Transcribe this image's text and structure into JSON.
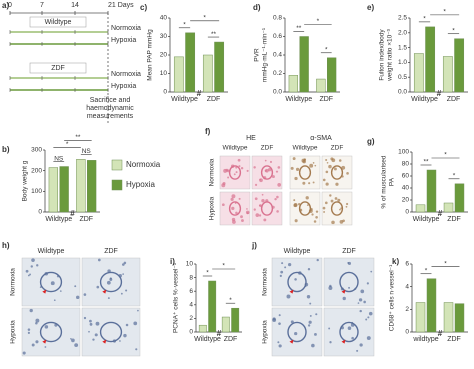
{
  "panel_labels": [
    "a)",
    "b)",
    "c)",
    "d)",
    "e)",
    "f)",
    "g)",
    "h)",
    "i)",
    "j)",
    "k)"
  ],
  "timeline": {
    "days": [
      "0",
      "7",
      "14",
      "21 Days"
    ],
    "groups": [
      {
        "name": "Wildtype",
        "conditions": [
          "Normoxia",
          "Hypoxia"
        ]
      },
      {
        "name": "ZDF",
        "conditions": [
          "Normoxia",
          "Hypoxia"
        ]
      }
    ],
    "endpoint": [
      "Sacrifice and",
      "haemodynamic",
      "measurements"
    ]
  },
  "chart_data": [
    {
      "type": "bar",
      "y_label": [
        "Body weight g"
      ],
      "categories": [
        "Wildtype",
        "ZDF"
      ],
      "axis_break": "#",
      "series": [
        {
          "name": "Normoxia",
          "color": "#d3e4b7",
          "values": [
            215,
            255
          ]
        },
        {
          "name": "Hypoxia",
          "color": "#6a9a3c",
          "values": [
            220,
            250
          ]
        }
      ],
      "ylim": [
        0,
        300
      ],
      "yticks": [
        0,
        100,
        200,
        300
      ],
      "annotations": [
        "NS",
        "*",
        "NS",
        "**"
      ]
    },
    {
      "type": "bar",
      "y_label": [
        "Mean PAP mmHg"
      ],
      "categories": [
        "Wildtype",
        "ZDF"
      ],
      "axis_break": "#",
      "series": [
        {
          "color": "#d3e4b7",
          "values": [
            19,
            20
          ]
        },
        {
          "color": "#6a9a3c",
          "values": [
            32,
            27
          ]
        }
      ],
      "ylim": [
        0,
        40
      ],
      "yticks": [
        0,
        10,
        20,
        30,
        40
      ],
      "annotations": [
        "*",
        "*",
        "**"
      ]
    },
    {
      "type": "bar",
      "y_label": [
        "PVR",
        "mmHg·mL⁻¹·min⁻¹"
      ],
      "categories": [
        "Wildtype",
        "ZDF"
      ],
      "series": [
        {
          "color": "#d3e4b7",
          "values": [
            0.18,
            0.14
          ]
        },
        {
          "color": "#6a9a3c",
          "values": [
            0.6,
            0.37
          ]
        }
      ],
      "ylim": [
        0,
        0.8
      ],
      "yticks": [
        {
          "value": 0,
          "label": "0.0"
        },
        0.2,
        0.4,
        0.6,
        0.8
      ],
      "annotations": [
        "**",
        "*",
        "*"
      ]
    },
    {
      "type": "bar",
      "y_label": [
        "Fulton index/body",
        "weight ratio ×10⁻³"
      ],
      "categories": [
        "Wildtype",
        "ZDF"
      ],
      "axis_break": "#",
      "series": [
        {
          "color": "#d3e4b7",
          "values": [
            1.3,
            1.2
          ]
        },
        {
          "color": "#6a9a3c",
          "values": [
            2.2,
            1.8
          ]
        }
      ],
      "ylim": [
        0,
        2.5
      ],
      "yticks": [
        {
          "value": 0,
          "label": "0.0"
        },
        0.5,
        {
          "value": 1,
          "label": "1.0"
        },
        1.5,
        {
          "value": 2,
          "label": "2.0"
        },
        2.5
      ],
      "annotations": [
        "*",
        "*",
        "*"
      ]
    },
    {
      "type": "bar",
      "y_label": [
        "% of muscularised",
        "PA"
      ],
      "categories": [
        "Wildtype",
        "ZDF"
      ],
      "axis_break": "#",
      "series": [
        {
          "color": "#d3e4b7",
          "values": [
            12,
            15
          ]
        },
        {
          "color": "#6a9a3c",
          "values": [
            70,
            47
          ]
        }
      ],
      "ylim": [
        0,
        100
      ],
      "yticks": [
        0,
        20,
        40,
        60,
        80,
        100
      ],
      "annotations": [
        "**",
        "*",
        "*"
      ]
    },
    {
      "type": "bar",
      "y_label": [
        "PCNA⁺ cells %·vessel⁻¹"
      ],
      "categories": [
        "Wildtype",
        "ZDF"
      ],
      "axis_break": "#",
      "series": [
        {
          "color": "#d3e4b7",
          "values": [
            1.0,
            2.2
          ]
        },
        {
          "color": "#6a9a3c",
          "values": [
            7.5,
            3.5
          ]
        }
      ],
      "ylim": [
        0,
        10
      ],
      "yticks": [
        0,
        2,
        4,
        6,
        8,
        10
      ],
      "annotations": [
        "*",
        "*",
        "*"
      ]
    },
    {
      "type": "bar",
      "y_label": [
        "CD68⁺ cells n·vessel⁻¹"
      ],
      "categories": [
        "wildtype",
        "ZDF"
      ],
      "axis_break": "#",
      "series": [
        {
          "color": "#d3e4b7",
          "values": [
            2.6,
            2.6
          ]
        },
        {
          "color": "#6a9a3c",
          "values": [
            4.7,
            2.5
          ]
        }
      ],
      "ylim": [
        0,
        6
      ],
      "yticks": [
        0,
        2,
        4,
        6
      ],
      "annotations": [
        "*",
        "*"
      ]
    }
  ],
  "micrographs": [
    {
      "columns": [
        "HE",
        "α-SMA"
      ],
      "subcolumns": [
        "Wildtype",
        "ZDF",
        "Wildtype",
        "ZDF"
      ],
      "rows": [
        "Normoxia",
        "Hypoxia"
      ]
    },
    {
      "subcolumns": [
        "Wildtype",
        "ZDF"
      ],
      "rows": [
        "Normoxia",
        "Hypoxia"
      ]
    },
    {
      "subcolumns": [
        "Wildtype",
        "ZDF"
      ],
      "rows": [
        "Normoxia",
        "Hypoxia"
      ]
    }
  ]
}
